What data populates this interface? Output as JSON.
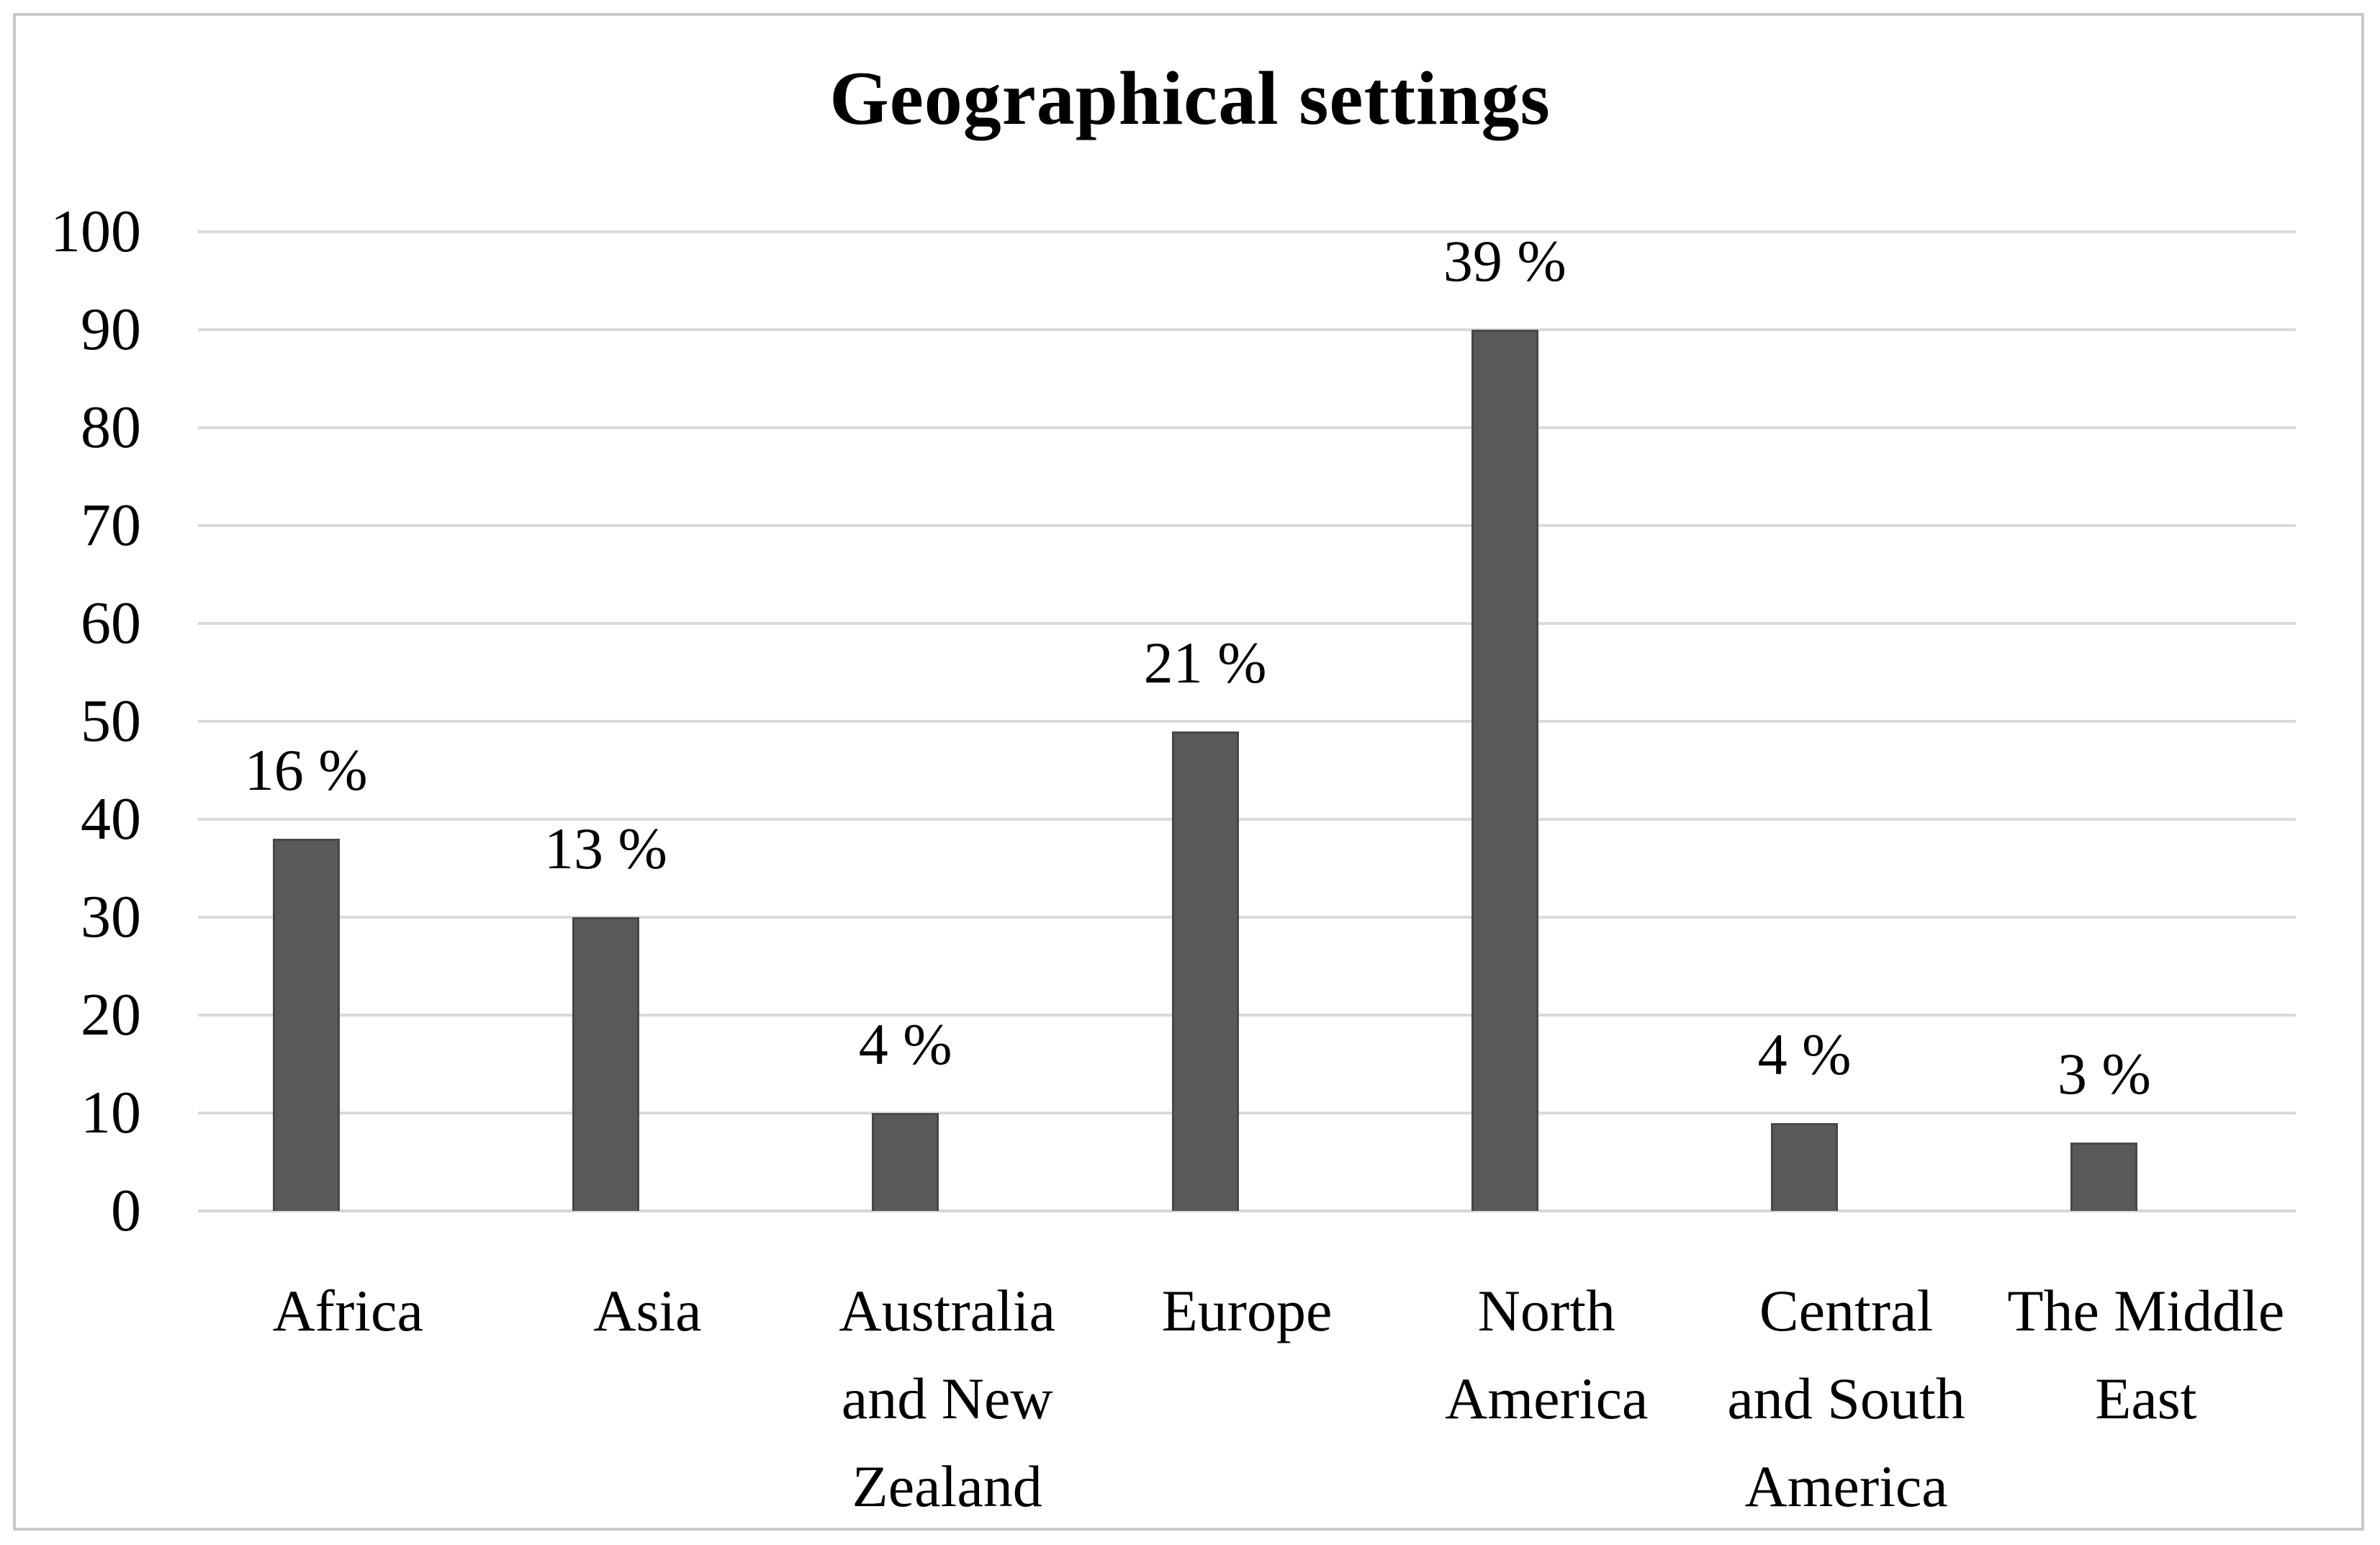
{
  "title": "Geographical settings",
  "chart_data": {
    "type": "bar",
    "title": "Geographical settings",
    "categories": [
      "Africa",
      "Asia",
      "Australia and New Zealand",
      "Europe",
      "North America",
      "Central and South America",
      "The Middle East"
    ],
    "category_lines": [
      [
        "Africa"
      ],
      [
        "Asia"
      ],
      [
        "Australia",
        "and New",
        "Zealand"
      ],
      [
        "Europe"
      ],
      [
        "North",
        "America"
      ],
      [
        "Central",
        "and South",
        "America"
      ],
      [
        "The Middle",
        "East"
      ]
    ],
    "values": [
      38,
      30,
      10,
      49,
      90,
      9,
      7
    ],
    "data_labels": [
      "16 %",
      "13 %",
      "4 %",
      "21 %",
      "39 %",
      "4 %",
      "3 %"
    ],
    "xlabel": "",
    "ylabel": "",
    "ylim": [
      0,
      100
    ],
    "yticks": [
      0,
      10,
      20,
      30,
      40,
      50,
      60,
      70,
      80,
      90,
      100
    ],
    "grid": true,
    "legend": false,
    "colors": {
      "bar_fill": "#595959",
      "bar_edge": "#474747",
      "gridline": "#d9d9d9",
      "axis_line": "#d6d6d6",
      "text": "#000000",
      "frame_border": "#c9c9c9",
      "background": "#ffffff"
    }
  }
}
